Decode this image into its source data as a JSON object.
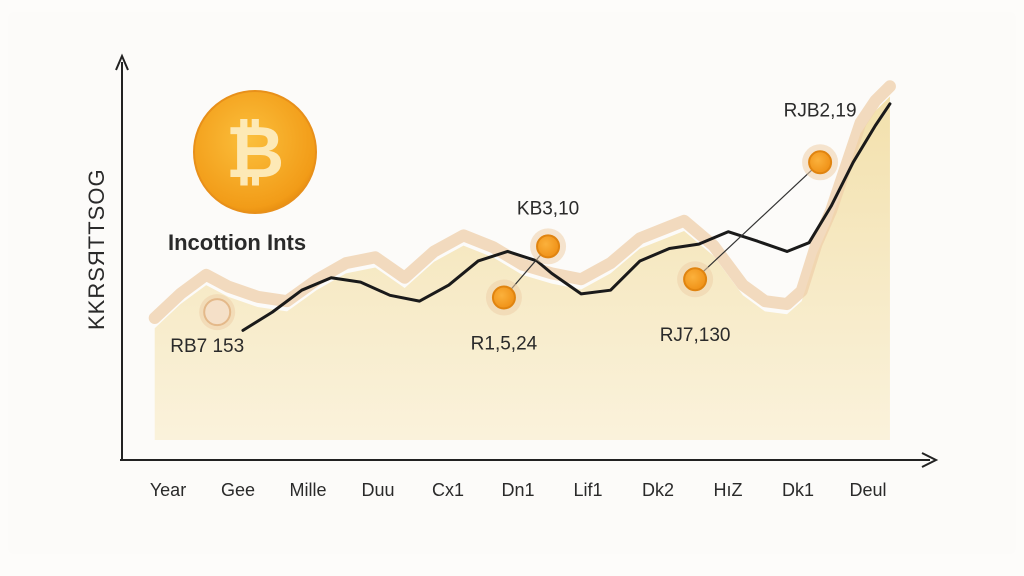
{
  "chart_data": {
    "type": "area",
    "title": "Incottion Ints",
    "ylabel": "KKRSЯTTSOG",
    "xlabel": "",
    "categories": [
      "Year",
      "Gee",
      "Mille",
      "Duu",
      "Cx1",
      "Dn1",
      "Lif1",
      "Dk2",
      "HıZ",
      "Dk1",
      "Deul"
    ],
    "series": [
      {
        "values": [
          153,
          186,
          212,
          196,
          182,
          176,
          205,
          228,
          236,
          208,
          244,
          266,
          250,
          226,
          214,
          206,
          228,
          262,
          278,
          286,
          252,
          198,
          176,
          172,
          190,
          254,
          300,
          360,
          420,
          450,
          470
        ]
      }
    ],
    "x": [
      0,
      0.35,
      0.7,
      1.0,
      1.4,
      1.8,
      2.2,
      2.6,
      3.0,
      3.4,
      3.8,
      4.2,
      4.6,
      5.0,
      5.4,
      5.8,
      6.2,
      6.6,
      7.0,
      7.2,
      7.6,
      8.0,
      8.3,
      8.6,
      8.8,
      9.0,
      9.2,
      9.4,
      9.6,
      9.8,
      10.0
    ],
    "line": {
      "x": [
        1.2,
        1.6,
        2.0,
        2.4,
        2.8,
        3.2,
        3.6,
        4.0,
        4.4,
        4.8,
        5.2,
        5.4,
        5.8,
        6.2,
        6.6,
        7.0,
        7.4,
        7.8,
        8.2,
        8.6,
        8.9,
        9.2,
        9.5,
        9.8,
        10.0
      ],
      "y": [
        150,
        175,
        205,
        222,
        216,
        198,
        190,
        212,
        245,
        258,
        245,
        228,
        200,
        205,
        245,
        262,
        268,
        285,
        272,
        258,
        270,
        320,
        380,
        430,
        460
      ]
    },
    "markers": [
      {
        "label": "RB7 153",
        "x": 0.85,
        "y": 175
      },
      {
        "label": "R1,5,24",
        "x": 4.75,
        "y": 195
      },
      {
        "label": "KB3,10",
        "x": 5.35,
        "y": 265
      },
      {
        "label": "RJ7,130",
        "x": 7.35,
        "y": 220
      },
      {
        "label": "RJB2,19",
        "x": 9.05,
        "y": 380
      }
    ],
    "ylim": [
      0,
      520
    ],
    "xlim": [
      -0.2,
      10.3
    ],
    "grid": false,
    "legend": "none",
    "colors": {
      "fill": "#f2dfa8",
      "line": "#1a1a1a",
      "marker": "#f29c24",
      "glow": "#efcfa9",
      "axis": "#222222"
    }
  },
  "logo": {
    "icon": "bitcoin-icon",
    "symbol": "₿",
    "color": "#f7a828"
  }
}
